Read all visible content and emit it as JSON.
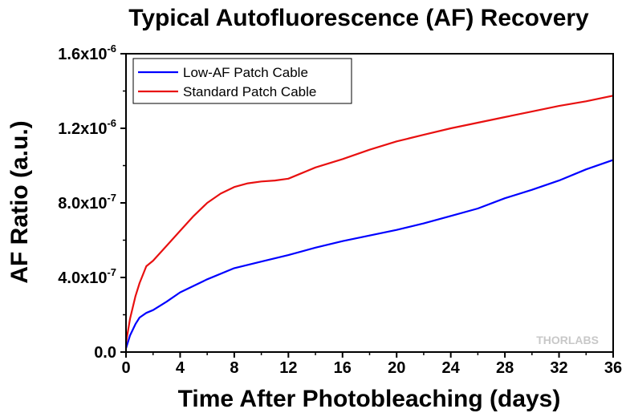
{
  "chart_data": {
    "type": "line",
    "title": "Typical Autofluorescence (AF) Recovery",
    "xlabel": "Time After Photobleaching (days)",
    "ylabel": "AF Ratio (a.u.)",
    "xlim": [
      0,
      36
    ],
    "ylim": [
      0,
      1.6e-06
    ],
    "x_ticks": [
      0,
      4,
      8,
      12,
      16,
      20,
      24,
      28,
      32,
      36
    ],
    "y_ticks": [
      {
        "value": 0,
        "mantissa": "0.0",
        "exponent": ""
      },
      {
        "value": 4e-07,
        "mantissa": "4.0x10",
        "exponent": "-7"
      },
      {
        "value": 8e-07,
        "mantissa": "8.0x10",
        "exponent": "-7"
      },
      {
        "value": 1.2e-06,
        "mantissa": "1.2x10",
        "exponent": "-6"
      },
      {
        "value": 1.6e-06,
        "mantissa": "1.6x10",
        "exponent": "-6"
      }
    ],
    "legend_position": "top-left",
    "grid": false,
    "series": [
      {
        "name": "Low-AF Patch Cable",
        "color": "#0000ff",
        "points": [
          [
            0,
            2e-08
          ],
          [
            0.3,
            9e-08
          ],
          [
            0.7,
            1.5e-07
          ],
          [
            1,
            1.85e-07
          ],
          [
            1.5,
            2.1e-07
          ],
          [
            2,
            2.25e-07
          ],
          [
            3,
            2.7e-07
          ],
          [
            4,
            3.2e-07
          ],
          [
            6,
            3.9e-07
          ],
          [
            8,
            4.5e-07
          ],
          [
            10,
            4.85e-07
          ],
          [
            12,
            5.2e-07
          ],
          [
            14,
            5.6e-07
          ],
          [
            16,
            5.95e-07
          ],
          [
            18,
            6.25e-07
          ],
          [
            20,
            6.55e-07
          ],
          [
            22,
            6.9e-07
          ],
          [
            24,
            7.3e-07
          ],
          [
            26,
            7.7e-07
          ],
          [
            28,
            8.25e-07
          ],
          [
            30,
            8.7e-07
          ],
          [
            32,
            9.2e-07
          ],
          [
            34,
            9.8e-07
          ],
          [
            36,
            1.03e-06
          ]
        ]
      },
      {
        "name": "Standard Patch Cable",
        "color": "#e81010",
        "points": [
          [
            0,
            5e-08
          ],
          [
            0.3,
            1.8e-07
          ],
          [
            0.7,
            3e-07
          ],
          [
            1,
            3.7e-07
          ],
          [
            1.5,
            4.6e-07
          ],
          [
            2,
            4.9e-07
          ],
          [
            3,
            5.7e-07
          ],
          [
            4,
            6.5e-07
          ],
          [
            5,
            7.3e-07
          ],
          [
            6,
            8e-07
          ],
          [
            7,
            8.5e-07
          ],
          [
            8,
            8.85e-07
          ],
          [
            9,
            9.05e-07
          ],
          [
            10,
            9.15e-07
          ],
          [
            11,
            9.2e-07
          ],
          [
            12,
            9.3e-07
          ],
          [
            13,
            9.6e-07
          ],
          [
            14,
            9.9e-07
          ],
          [
            16,
            1.035e-06
          ],
          [
            18,
            1.085e-06
          ],
          [
            20,
            1.13e-06
          ],
          [
            22,
            1.165e-06
          ],
          [
            24,
            1.2e-06
          ],
          [
            26,
            1.23e-06
          ],
          [
            28,
            1.26e-06
          ],
          [
            30,
            1.29e-06
          ],
          [
            32,
            1.32e-06
          ],
          [
            34,
            1.345e-06
          ],
          [
            36,
            1.375e-06
          ]
        ]
      }
    ]
  },
  "watermark": "THORLABS"
}
